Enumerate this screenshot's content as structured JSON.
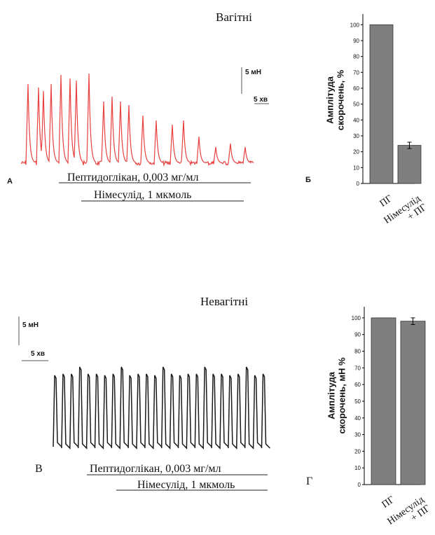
{
  "panel_labels": [
    "А",
    "Б",
    "В",
    "Г"
  ],
  "traces": [
    {
      "title": "Вагітні",
      "color": "#e8413f",
      "scale_force": "5 мН",
      "scale_time": "5 хв",
      "treatment_1": "Пептидоглікан, 0,003 мг/мл",
      "treatment_2": "Німесулід, 1 мкмоль"
    },
    {
      "title": "Невагітні",
      "color": "#1a1a1a",
      "scale_force": "5 мН",
      "scale_time": "5 хв",
      "treatment_1": "Пептидоглікан, 0,003 мг/мл",
      "treatment_2": "Німесулід, 1 мкмоль"
    }
  ],
  "chart_data": [
    {
      "type": "bar",
      "categories": [
        "ПГ",
        "Німесулід + ПГ"
      ],
      "values": [
        100,
        24
      ],
      "errors": [
        0,
        2
      ],
      "ylabel": "Амплітуда скорочень, %",
      "ylim": [
        0,
        105
      ],
      "yticks": [
        0,
        10,
        20,
        30,
        40,
        50,
        60,
        70,
        80,
        90,
        100
      ],
      "bar_color": "#7f7f7f"
    },
    {
      "type": "bar",
      "categories": [
        "ПГ",
        "Німесулід + ПГ"
      ],
      "values": [
        100,
        98
      ],
      "errors": [
        0,
        2
      ],
      "ylabel": "Амплітуда скорочень, мН %",
      "ylim": [
        0,
        105
      ],
      "yticks": [
        0,
        10,
        20,
        30,
        40,
        50,
        60,
        70,
        80,
        90,
        100
      ],
      "bar_color": "#7f7f7f"
    }
  ]
}
